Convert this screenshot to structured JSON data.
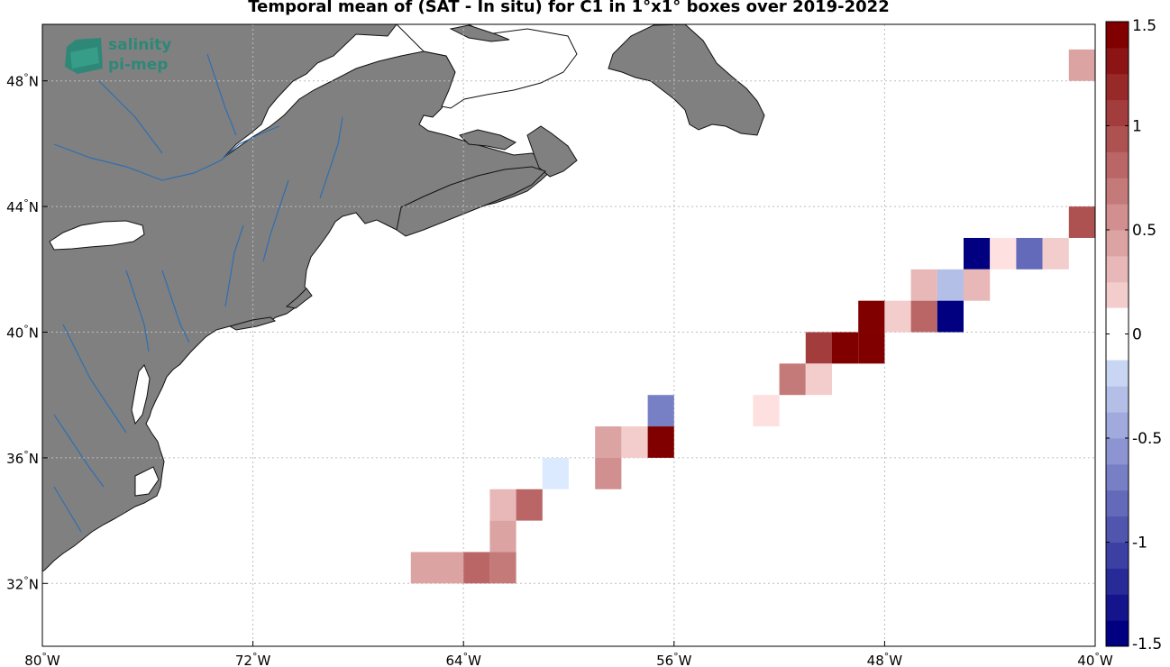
{
  "title": "Temporal mean of (SAT - In situ) for C1 in 1°x1° boxes over 2019-2022",
  "logo": {
    "line1": "salinity",
    "line2": "pi-mep"
  },
  "axes": {
    "lon_ticks": [
      {
        "lon": -80,
        "deg": "80",
        "hemi": "W"
      },
      {
        "lon": -72,
        "deg": "72",
        "hemi": "W"
      },
      {
        "lon": -64,
        "deg": "64",
        "hemi": "W"
      },
      {
        "lon": -56,
        "deg": "56",
        "hemi": "W"
      },
      {
        "lon": -48,
        "deg": "48",
        "hemi": "W"
      },
      {
        "lon": -40,
        "deg": "40",
        "hemi": "W"
      }
    ],
    "lat_ticks": [
      {
        "lat": 32,
        "deg": "32",
        "hemi": "N"
      },
      {
        "lat": 36,
        "deg": "36",
        "hemi": "N"
      },
      {
        "lat": 40,
        "deg": "40",
        "hemi": "N"
      },
      {
        "lat": 44,
        "deg": "44",
        "hemi": "N"
      },
      {
        "lat": 48,
        "deg": "48",
        "hemi": "N"
      }
    ],
    "lon_range": [
      -80,
      -40
    ],
    "lat_range": [
      30,
      49.8
    ]
  },
  "colorbar": {
    "min": -1.5,
    "max": 1.5,
    "levels": 24,
    "ticks": [
      {
        "v": 1.5,
        "label": "1.5"
      },
      {
        "v": 1,
        "label": "1"
      },
      {
        "v": 0.5,
        "label": "0.5"
      },
      {
        "v": 0,
        "label": "0"
      },
      {
        "v": -0.5,
        "label": "-0.5"
      },
      {
        "v": -1,
        "label": "-1"
      },
      {
        "v": -1.5,
        "label": "-1.5"
      }
    ]
  },
  "colors": {
    "land": "#808080",
    "river": "#2f6fb0",
    "grid": "#bdbdbd",
    "neg_dark": "#000080",
    "neg_light": "#dceaff",
    "pos_light": "#ffe0e0",
    "pos_dark": "#800000",
    "logo": "#1f8a76"
  },
  "chart_data": {
    "type": "heatmap",
    "cell_size_deg": 1,
    "units": "difference (SAT - In situ)",
    "cells": [
      {
        "lon": -40.5,
        "lat": 48.5,
        "value": 0.4
      },
      {
        "lon": -40.5,
        "lat": 43.5,
        "value": 0.95
      },
      {
        "lon": -44.5,
        "lat": 42.5,
        "value": -1.45
      },
      {
        "lon": -43.5,
        "lat": 42.5,
        "value": 0.1
      },
      {
        "lon": -42.5,
        "lat": 42.5,
        "value": -0.85
      },
      {
        "lon": -41.5,
        "lat": 42.5,
        "value": 0.25
      },
      {
        "lon": -46.5,
        "lat": 41.5,
        "value": 0.3
      },
      {
        "lon": -45.5,
        "lat": 41.5,
        "value": -0.3
      },
      {
        "lon": -44.5,
        "lat": 41.5,
        "value": 0.3
      },
      {
        "lon": -48.5,
        "lat": 40.5,
        "value": 1.4
      },
      {
        "lon": -47.5,
        "lat": 40.5,
        "value": 0.25
      },
      {
        "lon": -46.5,
        "lat": 40.5,
        "value": 0.85
      },
      {
        "lon": -45.5,
        "lat": 40.5,
        "value": -1.45
      },
      {
        "lon": -50.5,
        "lat": 39.5,
        "value": 1.1
      },
      {
        "lon": -49.5,
        "lat": 39.5,
        "value": 1.4
      },
      {
        "lon": -48.5,
        "lat": 39.5,
        "value": 1.4
      },
      {
        "lon": -51.5,
        "lat": 38.5,
        "value": 0.65
      },
      {
        "lon": -50.5,
        "lat": 38.5,
        "value": 0.15
      },
      {
        "lon": -56.5,
        "lat": 37.5,
        "value": -0.75
      },
      {
        "lon": -52.5,
        "lat": 37.5,
        "value": 0.1
      },
      {
        "lon": -58.5,
        "lat": 36.5,
        "value": 0.45
      },
      {
        "lon": -57.5,
        "lat": 36.5,
        "value": 0.25
      },
      {
        "lon": -56.5,
        "lat": 36.5,
        "value": 1.4
      },
      {
        "lon": -60.5,
        "lat": 35.5,
        "value": -0.1
      },
      {
        "lon": -58.5,
        "lat": 35.5,
        "value": 0.55
      },
      {
        "lon": -62.5,
        "lat": 34.5,
        "value": 0.3
      },
      {
        "lon": -61.5,
        "lat": 34.5,
        "value": 0.8
      },
      {
        "lon": -62.5,
        "lat": 33.5,
        "value": 0.4
      },
      {
        "lon": -65.5,
        "lat": 32.5,
        "value": 0.4
      },
      {
        "lon": -64.5,
        "lat": 32.5,
        "value": 0.4
      },
      {
        "lon": -63.5,
        "lat": 32.5,
        "value": 0.85
      },
      {
        "lon": -62.5,
        "lat": 32.5,
        "value": 0.7
      }
    ]
  }
}
